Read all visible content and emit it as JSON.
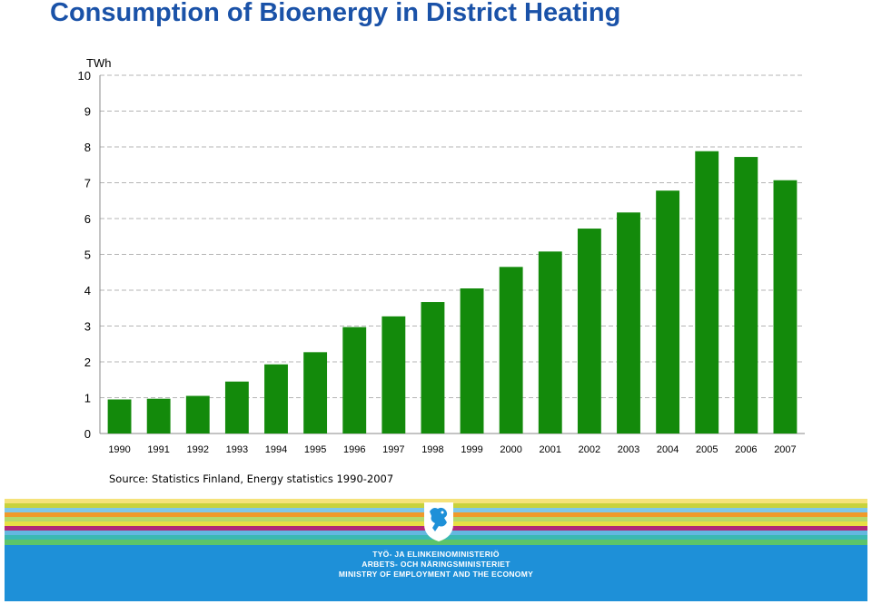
{
  "title": "Consumption of Bioenergy in District Heating",
  "source": "Source: Statistics Finland, Energy statistics 1990-2007",
  "colors": {
    "bar": "#138a0b",
    "title": "#1a52a8",
    "footer_bg": "#1e90d8",
    "stripes": [
      "#f5e27a",
      "#c8d23c",
      "#7fc8e8",
      "#f09a2a",
      "#b5d96a",
      "#e8e044",
      "#b02a78",
      "#63b8e0",
      "#3bb9b3",
      "#5cc46a"
    ]
  },
  "footer": {
    "crest_icon": "finnish-lion-crest-icon",
    "lines": [
      "TYÖ- JA ELINKEINOMINISTERIÖ",
      "ARBETS- OCH NÄRINGSMINISTERIET",
      "MINISTRY OF EMPLOYMENT AND THE ECONOMY"
    ]
  },
  "chart_data": {
    "type": "bar",
    "categories": [
      "1990",
      "1991",
      "1992",
      "1993",
      "1994",
      "1995",
      "1996",
      "1997",
      "1998",
      "1999",
      "2000",
      "2001",
      "2002",
      "2003",
      "2004",
      "2005",
      "2006",
      "2007"
    ],
    "values": [
      0.95,
      0.97,
      1.05,
      1.45,
      1.93,
      2.27,
      2.97,
      3.27,
      3.67,
      4.05,
      4.65,
      5.08,
      5.72,
      6.17,
      6.78,
      7.88,
      7.72,
      7.07
    ],
    "ylabel": "TWh",
    "ylim": [
      0,
      10
    ],
    "yticks": [
      0,
      1,
      2,
      3,
      4,
      5,
      6,
      7,
      8,
      9,
      10
    ],
    "grid": true,
    "legend": "none"
  }
}
